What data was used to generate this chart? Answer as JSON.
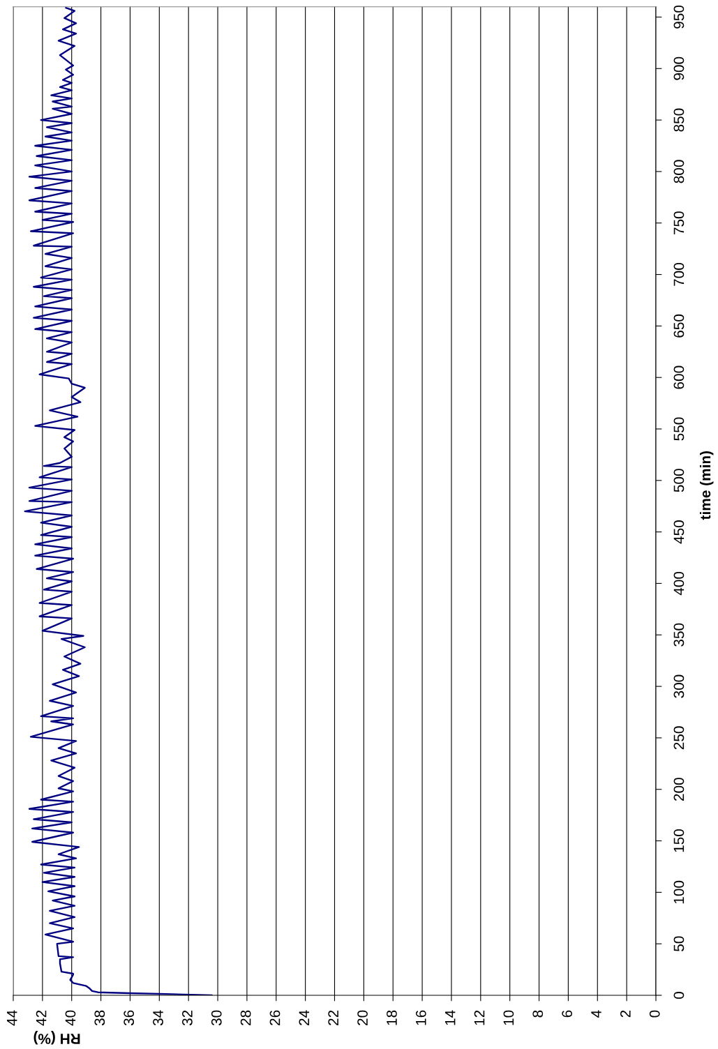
{
  "chart_data": {
    "type": "line",
    "orientation": "horizontal",
    "xlabel": "RH (%)",
    "ylabel": "time (min)",
    "xlim": [
      44,
      0
    ],
    "xticks": [
      0,
      2,
      4,
      6,
      8,
      10,
      12,
      14,
      16,
      18,
      20,
      22,
      24,
      26,
      28,
      30,
      32,
      34,
      36,
      38,
      40,
      42,
      44
    ],
    "ylim": [
      0,
      960
    ],
    "yticks": [
      0,
      50,
      100,
      150,
      200,
      250,
      300,
      350,
      400,
      450,
      500,
      550,
      600,
      650,
      700,
      750,
      800,
      850,
      900,
      950
    ],
    "grid": "x",
    "line_style": "solid",
    "color": "#000080",
    "x": [
      0,
      1.4,
      2,
      2.9,
      4.1,
      7,
      9,
      12,
      15,
      20,
      21,
      23,
      31,
      35,
      37,
      38,
      50,
      52,
      59,
      65,
      70,
      76,
      82,
      87,
      92,
      96,
      101,
      106,
      110,
      115,
      119,
      124,
      127,
      133,
      137,
      144,
      149,
      158,
      162,
      168,
      171,
      178,
      181,
      188,
      190,
      198,
      201,
      208,
      213,
      221,
      228,
      235,
      240,
      247,
      251,
      263,
      266,
      269,
      271,
      281,
      286,
      294,
      302,
      310,
      316,
      322,
      329,
      338,
      346,
      349,
      354,
      366,
      368,
      379,
      381,
      392,
      394,
      402,
      405,
      411,
      414,
      424,
      427,
      434,
      438,
      445,
      447,
      455,
      459,
      466,
      470,
      479,
      480,
      490,
      493,
      501,
      503,
      513,
      514,
      517,
      523,
      531,
      538,
      542,
      549,
      553,
      562,
      568,
      576,
      581,
      590,
      594,
      599,
      603,
      613,
      615,
      623,
      625,
      634,
      638,
      644,
      647,
      655,
      658,
      666,
      669,
      677,
      679,
      685,
      688,
      695,
      697,
      705,
      708,
      716,
      720,
      727,
      728,
      740,
      742,
      751,
      753,
      759,
      761,
      769,
      772,
      781,
      784,
      791,
      795,
      800,
      806,
      811,
      815,
      821,
      825,
      830,
      834,
      838,
      843,
      847,
      850,
      856,
      861,
      863,
      868,
      871,
      874,
      879,
      882,
      886,
      889,
      894,
      899,
      903,
      913,
      922,
      927,
      934,
      938,
      944,
      949,
      956,
      959
    ],
    "values": [
      30.4,
      34.0,
      36.0,
      38.2,
      38.6,
      38.8,
      39.0,
      39.9,
      40.1,
      39.9,
      39.9,
      40.7,
      40.8,
      40.8,
      39.9,
      40.9,
      41.0,
      39.9,
      41.8,
      39.9,
      41.5,
      39.8,
      41.5,
      39.8,
      41.3,
      39.8,
      41.6,
      39.8,
      42.0,
      39.8,
      41.9,
      39.8,
      42.1,
      39.7,
      40.9,
      39.5,
      42.7,
      39.9,
      42.7,
      40.0,
      42.6,
      39.9,
      42.9,
      39.9,
      42.1,
      39.9,
      40.9,
      39.9,
      40.9,
      39.8,
      41.4,
      39.7,
      40.9,
      39.7,
      42.8,
      39.9,
      41.4,
      39.9,
      42.1,
      39.9,
      41.5,
      39.7,
      41.3,
      39.5,
      40.6,
      39.4,
      40.5,
      39.1,
      40.7,
      39.2,
      42.0,
      40.0,
      42.2,
      40.0,
      42.2,
      40.0,
      41.9,
      40.0,
      41.7,
      39.9,
      42.4,
      39.9,
      42.5,
      40.0,
      42.5,
      40.0,
      42.1,
      40.0,
      42.1,
      40.0,
      43.2,
      40.0,
      42.9,
      40.0,
      42.9,
      40.0,
      42.2,
      40.0,
      41.9,
      40.8,
      40.0,
      40.5,
      39.9,
      40.5,
      39.8,
      42.5,
      39.6,
      41.5,
      39.4,
      40.0,
      39.1,
      40.0,
      40.2,
      42.2,
      40.0,
      41.7,
      40.0,
      41.7,
      40.0,
      41.7,
      40.0,
      42.5,
      40.0,
      42.6,
      40.0,
      42.5,
      40.0,
      41.9,
      40.0,
      42.6,
      40.0,
      42.1,
      40.0,
      41.8,
      40.0,
      41.8,
      40.0,
      42.6,
      39.9,
      42.8,
      39.9,
      42.0,
      40.0,
      42.5,
      40.0,
      42.9,
      40.0,
      42.5,
      40.0,
      42.9,
      40.0,
      42.5,
      40.0,
      42.4,
      40.0,
      42.5,
      40.0,
      41.8,
      40.0,
      41.7,
      40.0,
      42.1,
      40.0,
      41.3,
      40.0,
      41.3,
      40.0,
      41.4,
      40.0,
      40.8,
      40.0,
      40.6,
      39.9,
      40.4,
      39.9,
      40.8,
      39.8,
      40.9,
      39.7,
      40.6,
      39.7,
      40.5,
      39.8,
      40.4
    ]
  }
}
